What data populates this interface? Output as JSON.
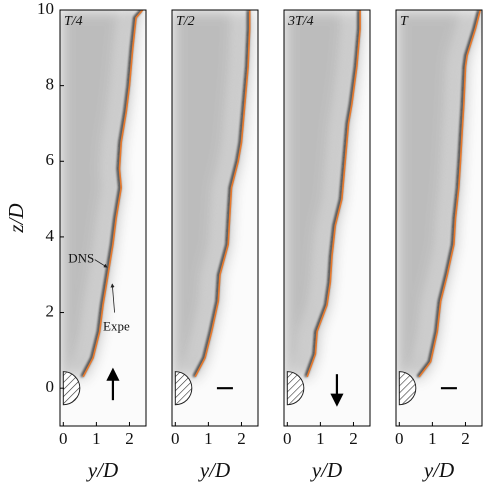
{
  "chart_data": [
    {
      "type": "line",
      "title": "T/4",
      "color": "#e8792c",
      "x": [
        0.6,
        0.9,
        1.1,
        1.2,
        1.35,
        1.5,
        1.6,
        1.75,
        1.7,
        1.75,
        1.9,
        2.0,
        2.1,
        2.2,
        2.4
      ],
      "values": [
        0.3,
        0.8,
        1.5,
        2.2,
        3.0,
        3.8,
        4.5,
        5.3,
        5.8,
        6.5,
        7.3,
        8.0,
        9.0,
        9.8,
        10
      ],
      "xlim": [
        -0.1,
        2.5
      ],
      "ylim": [
        -1,
        10
      ],
      "xticks": [
        0,
        1,
        2
      ],
      "yticks": [
        0,
        2,
        4,
        6,
        8,
        10
      ],
      "xlabel": "y/D",
      "ylabel": "z/D",
      "annotations": [
        "DNS",
        "Expe"
      ]
    },
    {
      "type": "line",
      "title": "T/2",
      "color": "#e8792c",
      "x": [
        0.6,
        0.9,
        1.1,
        1.3,
        1.35,
        1.6,
        1.65,
        1.7,
        1.9,
        2.0,
        2.1,
        2.2,
        2.25,
        2.25
      ],
      "values": [
        0.3,
        0.8,
        1.5,
        2.3,
        3.0,
        3.8,
        4.6,
        5.3,
        6.0,
        6.5,
        7.5,
        8.5,
        9.5,
        10
      ],
      "xlim": [
        -0.1,
        2.5
      ],
      "ylim": [
        -1,
        10
      ],
      "xticks": [
        0,
        1,
        2
      ],
      "xlabel": "y/D"
    },
    {
      "type": "line",
      "title": "3T/4",
      "color": "#e8792c",
      "x": [
        0.6,
        0.85,
        0.9,
        1.2,
        1.3,
        1.35,
        1.45,
        1.65,
        1.75,
        1.85,
        1.95,
        2.1,
        2.2,
        2.2
      ],
      "values": [
        0.3,
        0.9,
        1.5,
        2.2,
        2.8,
        3.5,
        4.3,
        5.0,
        6.0,
        7.0,
        7.5,
        8.5,
        9.5,
        10
      ],
      "xlim": [
        -0.1,
        2.5
      ],
      "ylim": [
        -1,
        10
      ],
      "xticks": [
        0,
        1,
        2
      ],
      "xlabel": "y/D"
    },
    {
      "type": "line",
      "title": "T",
      "color": "#e8792c",
      "x": [
        0.6,
        0.95,
        1.15,
        1.25,
        1.45,
        1.65,
        1.7,
        1.8,
        1.85,
        1.9,
        1.95,
        2.0,
        2.05,
        2.3,
        2.45
      ],
      "values": [
        0.3,
        0.7,
        1.5,
        2.3,
        3.0,
        3.8,
        4.5,
        5.3,
        6.0,
        6.8,
        7.5,
        8.5,
        8.8,
        9.5,
        10
      ],
      "xlim": [
        -0.1,
        2.5
      ],
      "ylim": [
        -1,
        10
      ],
      "xticks": [
        0,
        1,
        2
      ],
      "xlabel": "y/D"
    }
  ]
}
